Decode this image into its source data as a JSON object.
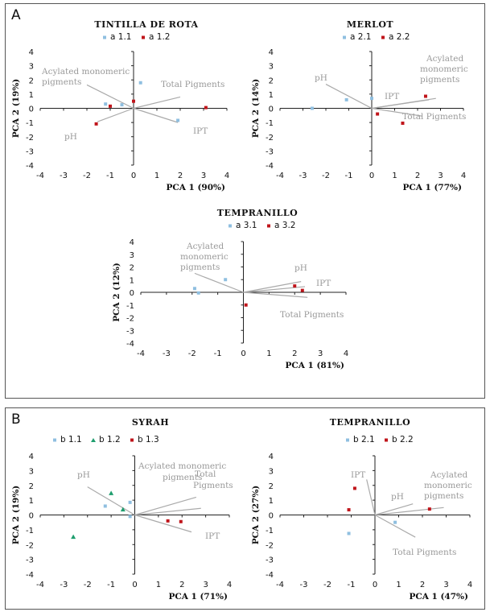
{
  "panels": [
    {
      "letter": "A"
    },
    {
      "letter": "B"
    }
  ],
  "chart_data": [
    {
      "type": "scatter",
      "title": "TINTILLA DE ROTA",
      "xlabel": "PCA 1 (90%)",
      "ylabel": "PCA 2 (19%)",
      "xlim": [
        -4,
        4
      ],
      "ylim": [
        -4,
        4
      ],
      "xticks": [
        "-4",
        "-3",
        "-2",
        "-1",
        "0",
        "1",
        "2",
        "3",
        "4"
      ],
      "yticks": [
        "4",
        "3",
        "2",
        "1",
        "0",
        "-1",
        "-2",
        "-3",
        "-4"
      ],
      "series": [
        {
          "name": "a 1.1",
          "marker": "square",
          "color": "#8fbfe0",
          "points": [
            [
              -1.2,
              0.3
            ],
            [
              -0.5,
              0.25
            ],
            [
              0.3,
              1.8
            ],
            [
              1.9,
              -0.85
            ]
          ]
        },
        {
          "name": "a 1.2",
          "marker": "square",
          "color": "#c0151b",
          "points": [
            [
              -1.0,
              0.15
            ],
            [
              0.0,
              0.5
            ],
            [
              3.1,
              0.05
            ],
            [
              -1.6,
              -1.1
            ]
          ]
        }
      ],
      "vectors": [
        {
          "label": "Acylated monomeric pigments",
          "x": -2.0,
          "y": 1.65
        },
        {
          "label": "Total Pigments",
          "x": 2.0,
          "y": 0.8
        },
        {
          "label": "pH",
          "x": -1.55,
          "y": -0.95
        },
        {
          "label": "IPT",
          "x": 1.9,
          "y": -1.0
        }
      ]
    },
    {
      "type": "scatter",
      "title": "MERLOT",
      "xlabel": "PCA 1 (77%)",
      "ylabel": "PCA 2 (14%)",
      "xlim": [
        -4,
        4
      ],
      "ylim": [
        -4,
        4
      ],
      "xticks": [
        "-4",
        "-3",
        "-2",
        "-1",
        "0",
        "1",
        "2",
        "3",
        "4"
      ],
      "yticks": [
        "4",
        "3",
        "2",
        "1",
        "0",
        "-1",
        "-2",
        "-3",
        "-4"
      ],
      "series": [
        {
          "name": "a 2.1",
          "marker": "square",
          "color": "#8fbfe0",
          "points": [
            [
              -2.6,
              0.0
            ],
            [
              -1.1,
              0.6
            ],
            [
              0.0,
              0.7
            ]
          ]
        },
        {
          "name": "a 2.2",
          "marker": "square",
          "color": "#c0151b",
          "points": [
            [
              2.35,
              0.85
            ],
            [
              0.25,
              -0.4
            ],
            [
              1.35,
              -1.05
            ]
          ]
        }
      ],
      "vectors": [
        {
          "label": "pH",
          "x": -2.0,
          "y": 1.7
        },
        {
          "label": "Acylated monomeric pigments",
          "x": 2.5,
          "y": 0.6
        },
        {
          "label": "IPT",
          "x": 2.8,
          "y": 0.7
        },
        {
          "label": "Total Pigments",
          "x": 2.2,
          "y": -0.55
        }
      ]
    },
    {
      "type": "scatter",
      "title": "TEMPRANILLO",
      "xlabel": "PCA 1 (81%)",
      "ylabel": "PCA 2 (12%)",
      "xlim": [
        -4,
        4
      ],
      "ylim": [
        -4,
        4
      ],
      "xticks": [
        "-4",
        "-3",
        "-2",
        "-1",
        "0",
        "1",
        "2",
        "3",
        "4"
      ],
      "yticks": [
        "4",
        "3",
        "2",
        "1",
        "0",
        "-1",
        "-2",
        "-3",
        "-4"
      ],
      "series": [
        {
          "name": "a 3.1",
          "marker": "square",
          "color": "#8fbfe0",
          "points": [
            [
              -1.9,
              0.3
            ],
            [
              -1.75,
              -0.05
            ],
            [
              -0.7,
              1.0
            ]
          ]
        },
        {
          "name": "a 3.2",
          "marker": "square",
          "color": "#c0151b",
          "points": [
            [
              2.0,
              0.5
            ],
            [
              2.3,
              0.15
            ],
            [
              0.1,
              -1.0
            ]
          ]
        }
      ],
      "vectors": [
        {
          "label": "Acylated monomeric pigments",
          "x": -1.9,
          "y": 1.5
        },
        {
          "label": "pH",
          "x": 2.25,
          "y": 0.85
        },
        {
          "label": "IPT",
          "x": 2.4,
          "y": 0.45
        },
        {
          "label": "Total Pigments",
          "x": 2.5,
          "y": -0.4
        }
      ]
    },
    {
      "type": "scatter",
      "title": "SYRAH",
      "xlabel": "PCA 1 (71%)",
      "ylabel": "PCA 2 (19%)",
      "xlim": [
        -4,
        4
      ],
      "ylim": [
        -4,
        4
      ],
      "xticks": [
        "-4",
        "-3",
        "-2",
        "-1",
        "0",
        "1",
        "2",
        "3",
        "4"
      ],
      "yticks": [
        "4",
        "3",
        "2",
        "1",
        "0",
        "-1",
        "-2",
        "-3",
        "-4"
      ],
      "series": [
        {
          "name": "b 1.1",
          "marker": "square",
          "color": "#8fbfe0",
          "points": [
            [
              -1.25,
              0.6
            ],
            [
              -0.2,
              0.85
            ],
            [
              -0.2,
              -0.1
            ]
          ]
        },
        {
          "name": "b 1.2",
          "marker": "triangle",
          "color": "#1f9e6e",
          "points": [
            [
              -1.0,
              1.45
            ],
            [
              -0.5,
              0.35
            ],
            [
              -2.6,
              -1.5
            ]
          ]
        },
        {
          "name": "b 1.3",
          "marker": "square",
          "color": "#c0151b",
          "points": [
            [
              1.4,
              -0.4
            ],
            [
              1.95,
              -0.45
            ]
          ]
        }
      ],
      "vectors": [
        {
          "label": "pH",
          "x": -2.0,
          "y": 1.9
        },
        {
          "label": "Acylated monomeric pigments",
          "x": 2.6,
          "y": 1.2
        },
        {
          "label": "Total Pigments",
          "x": 2.8,
          "y": 0.45
        },
        {
          "label": "IPT",
          "x": 2.4,
          "y": -1.15
        }
      ]
    },
    {
      "type": "scatter",
      "title": "TEMPRANILLO",
      "xlabel": "PCA 1 (47%)",
      "ylabel": "PCA 2 (27%)",
      "xlim": [
        -4,
        4
      ],
      "ylim": [
        -4,
        4
      ],
      "xticks": [
        "-4",
        "-3",
        "-2",
        "-1",
        "0",
        "1",
        "2",
        "3",
        "4"
      ],
      "yticks": [
        "4",
        "3",
        "2",
        "1",
        "0",
        "-1",
        "-2",
        "-3",
        "-4"
      ],
      "series": [
        {
          "name": "b 2.1",
          "marker": "square",
          "color": "#8fbfe0",
          "points": [
            [
              -1.1,
              -1.25
            ],
            [
              0.85,
              -0.5
            ]
          ]
        },
        {
          "name": "b 2.2",
          "marker": "square",
          "color": "#c0151b",
          "points": [
            [
              -0.85,
              1.8
            ],
            [
              -1.1,
              0.35
            ],
            [
              2.3,
              0.4
            ]
          ]
        }
      ],
      "vectors": [
        {
          "label": "IPT",
          "x": -0.35,
          "y": 2.4
        },
        {
          "label": "pH",
          "x": 1.6,
          "y": 0.75
        },
        {
          "label": "Acylated monomeric pigments",
          "x": 2.9,
          "y": 0.5
        },
        {
          "label": "Total Pigments",
          "x": 1.7,
          "y": -1.5
        }
      ]
    }
  ]
}
